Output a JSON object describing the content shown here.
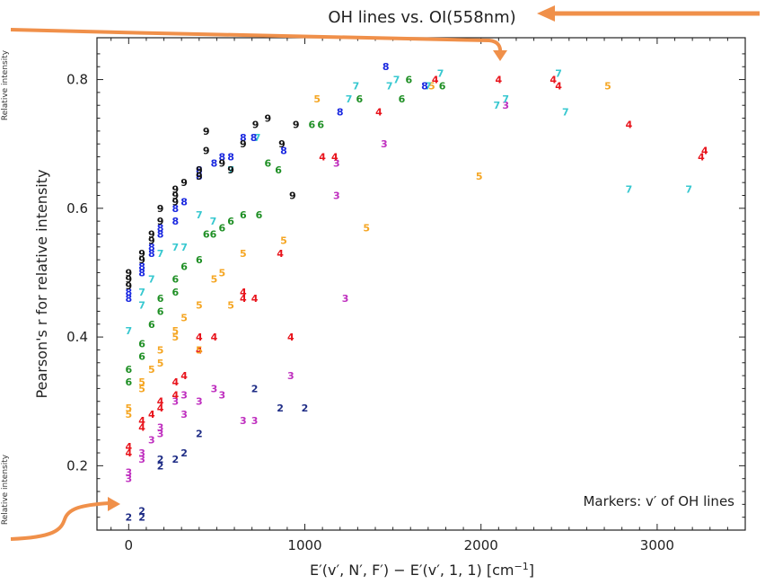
{
  "side_labels": [
    "Relative intensity",
    "Relative intensity"
  ],
  "callout_color": "#f0904a",
  "chart_data": {
    "type": "scatter",
    "title": "OH lines vs. OI(558nm)",
    "xlabel": "E′(v′, N′, F′) − E′(v′, 1, 1) [cm−1]",
    "ylabel": "Pearson's r for relative intensity",
    "xlim": [
      -180,
      3500
    ],
    "ylim": [
      0.1,
      0.865
    ],
    "xticks": [
      0,
      1000,
      2000,
      3000
    ],
    "yticks": [
      0.2,
      0.4,
      0.6,
      0.8
    ],
    "xtick_labels": [
      "0",
      "1000",
      "2000",
      "3000"
    ],
    "ytick_labels": [
      "0.2",
      "0.4",
      "0.6",
      "0.8"
    ],
    "grid": false,
    "annotation": "Markers: v′ of OH lines",
    "marker_type": "text digit = v′",
    "series": [
      {
        "name": "2",
        "color": "#1f2d86",
        "points": [
          [
            0,
            0.12
          ],
          [
            75,
            0.13
          ],
          [
            75,
            0.12
          ],
          [
            180,
            0.21
          ],
          [
            180,
            0.2
          ],
          [
            265,
            0.21
          ],
          [
            315,
            0.22
          ],
          [
            400,
            0.25
          ],
          [
            715,
            0.32
          ],
          [
            860,
            0.29
          ],
          [
            1000,
            0.29
          ]
        ]
      },
      {
        "name": "3",
        "color": "#bf2fbf",
        "points": [
          [
            0,
            0.19
          ],
          [
            0,
            0.18
          ],
          [
            75,
            0.22
          ],
          [
            75,
            0.21
          ],
          [
            130,
            0.24
          ],
          [
            180,
            0.25
          ],
          [
            180,
            0.26
          ],
          [
            265,
            0.3
          ],
          [
            315,
            0.31
          ],
          [
            315,
            0.28
          ],
          [
            400,
            0.3
          ],
          [
            485,
            0.32
          ],
          [
            530,
            0.31
          ],
          [
            650,
            0.27
          ],
          [
            715,
            0.27
          ],
          [
            920,
            0.34
          ],
          [
            1180,
            0.67
          ],
          [
            1180,
            0.62
          ],
          [
            1230,
            0.46
          ],
          [
            1450,
            0.7
          ],
          [
            2140,
            0.76
          ]
        ]
      },
      {
        "name": "4",
        "color": "#e8141c",
        "points": [
          [
            0,
            0.22
          ],
          [
            0,
            0.23
          ],
          [
            75,
            0.26
          ],
          [
            75,
            0.27
          ],
          [
            130,
            0.28
          ],
          [
            180,
            0.29
          ],
          [
            180,
            0.3
          ],
          [
            265,
            0.33
          ],
          [
            265,
            0.31
          ],
          [
            315,
            0.34
          ],
          [
            400,
            0.38
          ],
          [
            400,
            0.4
          ],
          [
            485,
            0.4
          ],
          [
            650,
            0.46
          ],
          [
            650,
            0.47
          ],
          [
            715,
            0.46
          ],
          [
            860,
            0.53
          ],
          [
            920,
            0.4
          ],
          [
            1100,
            0.68
          ],
          [
            1170,
            0.68
          ],
          [
            1420,
            0.75
          ],
          [
            1740,
            0.8
          ],
          [
            2100,
            0.8
          ],
          [
            2410,
            0.8
          ],
          [
            2440,
            0.79
          ],
          [
            2840,
            0.73
          ],
          [
            3250,
            0.68
          ],
          [
            3270,
            0.69
          ]
        ]
      },
      {
        "name": "5",
        "color": "#f5a623",
        "points": [
          [
            0,
            0.28
          ],
          [
            0,
            0.29
          ],
          [
            75,
            0.32
          ],
          [
            75,
            0.33
          ],
          [
            130,
            0.35
          ],
          [
            180,
            0.36
          ],
          [
            180,
            0.38
          ],
          [
            265,
            0.4
          ],
          [
            265,
            0.41
          ],
          [
            315,
            0.43
          ],
          [
            400,
            0.45
          ],
          [
            400,
            0.38
          ],
          [
            485,
            0.49
          ],
          [
            530,
            0.5
          ],
          [
            580,
            0.45
          ],
          [
            650,
            0.53
          ],
          [
            880,
            0.55
          ],
          [
            1070,
            0.77
          ],
          [
            1350,
            0.57
          ],
          [
            1720,
            0.79
          ],
          [
            1990,
            0.65
          ],
          [
            2720,
            0.79
          ]
        ]
      },
      {
        "name": "6",
        "color": "#1e8f24",
        "points": [
          [
            0,
            0.33
          ],
          [
            0,
            0.35
          ],
          [
            75,
            0.37
          ],
          [
            75,
            0.39
          ],
          [
            130,
            0.42
          ],
          [
            180,
            0.44
          ],
          [
            180,
            0.46
          ],
          [
            265,
            0.47
          ],
          [
            265,
            0.49
          ],
          [
            315,
            0.51
          ],
          [
            400,
            0.52
          ],
          [
            440,
            0.56
          ],
          [
            480,
            0.56
          ],
          [
            530,
            0.57
          ],
          [
            580,
            0.58
          ],
          [
            650,
            0.59
          ],
          [
            740,
            0.59
          ],
          [
            790,
            0.67
          ],
          [
            850,
            0.66
          ],
          [
            1040,
            0.73
          ],
          [
            1090,
            0.73
          ],
          [
            1310,
            0.77
          ],
          [
            1550,
            0.77
          ],
          [
            1590,
            0.8
          ],
          [
            1780,
            0.79
          ]
        ]
      },
      {
        "name": "7",
        "color": "#38c8d0",
        "points": [
          [
            0,
            0.41
          ],
          [
            75,
            0.45
          ],
          [
            75,
            0.47
          ],
          [
            130,
            0.49
          ],
          [
            180,
            0.53
          ],
          [
            265,
            0.54
          ],
          [
            315,
            0.54
          ],
          [
            400,
            0.59
          ],
          [
            480,
            0.58
          ],
          [
            580,
            0.66
          ],
          [
            730,
            0.71
          ],
          [
            1250,
            0.77
          ],
          [
            1290,
            0.79
          ],
          [
            1480,
            0.79
          ],
          [
            1520,
            0.8
          ],
          [
            1700,
            0.79
          ],
          [
            1770,
            0.81
          ],
          [
            2090,
            0.76
          ],
          [
            2140,
            0.77
          ],
          [
            2440,
            0.81
          ],
          [
            2480,
            0.75
          ],
          [
            2840,
            0.63
          ],
          [
            3180,
            0.63
          ]
        ]
      },
      {
        "name": "8",
        "color": "#1a28e0",
        "points": [
          [
            0,
            0.46
          ],
          [
            0,
            0.47
          ],
          [
            75,
            0.5
          ],
          [
            75,
            0.51
          ],
          [
            130,
            0.53
          ],
          [
            130,
            0.54
          ],
          [
            180,
            0.56
          ],
          [
            180,
            0.57
          ],
          [
            265,
            0.58
          ],
          [
            265,
            0.6
          ],
          [
            315,
            0.61
          ],
          [
            400,
            0.65
          ],
          [
            400,
            0.66
          ],
          [
            485,
            0.67
          ],
          [
            530,
            0.68
          ],
          [
            580,
            0.68
          ],
          [
            650,
            0.71
          ],
          [
            710,
            0.71
          ],
          [
            880,
            0.69
          ],
          [
            1200,
            0.75
          ],
          [
            1460,
            0.82
          ],
          [
            1680,
            0.79
          ]
        ]
      },
      {
        "name": "9",
        "color": "#111111",
        "points": [
          [
            0,
            0.48
          ],
          [
            0,
            0.49
          ],
          [
            0,
            0.5
          ],
          [
            75,
            0.52
          ],
          [
            75,
            0.53
          ],
          [
            130,
            0.55
          ],
          [
            130,
            0.56
          ],
          [
            180,
            0.58
          ],
          [
            180,
            0.6
          ],
          [
            265,
            0.61
          ],
          [
            265,
            0.62
          ],
          [
            265,
            0.63
          ],
          [
            315,
            0.64
          ],
          [
            400,
            0.65
          ],
          [
            400,
            0.66
          ],
          [
            440,
            0.69
          ],
          [
            440,
            0.72
          ],
          [
            530,
            0.67
          ],
          [
            580,
            0.66
          ],
          [
            650,
            0.7
          ],
          [
            720,
            0.73
          ],
          [
            790,
            0.74
          ],
          [
            870,
            0.7
          ],
          [
            930,
            0.62
          ],
          [
            950,
            0.73
          ]
        ]
      }
    ]
  }
}
